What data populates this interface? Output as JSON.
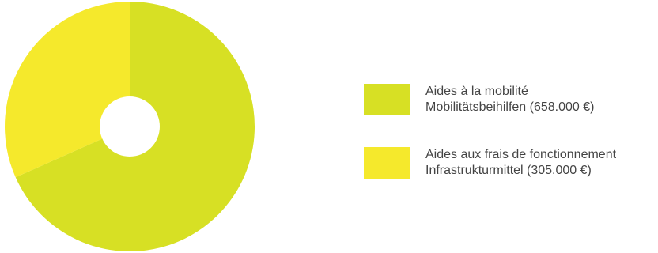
{
  "chart_data": {
    "type": "pie",
    "variant": "donut",
    "series": [
      {
        "label_fr": "Aides à la mobilité",
        "label_de": "Mobilitätsbeihilfen (658.000 €)",
        "value": 658000,
        "color": "#d7e024"
      },
      {
        "label_fr": "Aides aux frais de fonctionnement",
        "label_de": "Infrastrukturmittel (305.000 €)",
        "value": 305000,
        "color": "#f5e92c"
      }
    ],
    "legend_position": "right",
    "start_angle": "12 o'clock",
    "direction": "clockwise"
  }
}
